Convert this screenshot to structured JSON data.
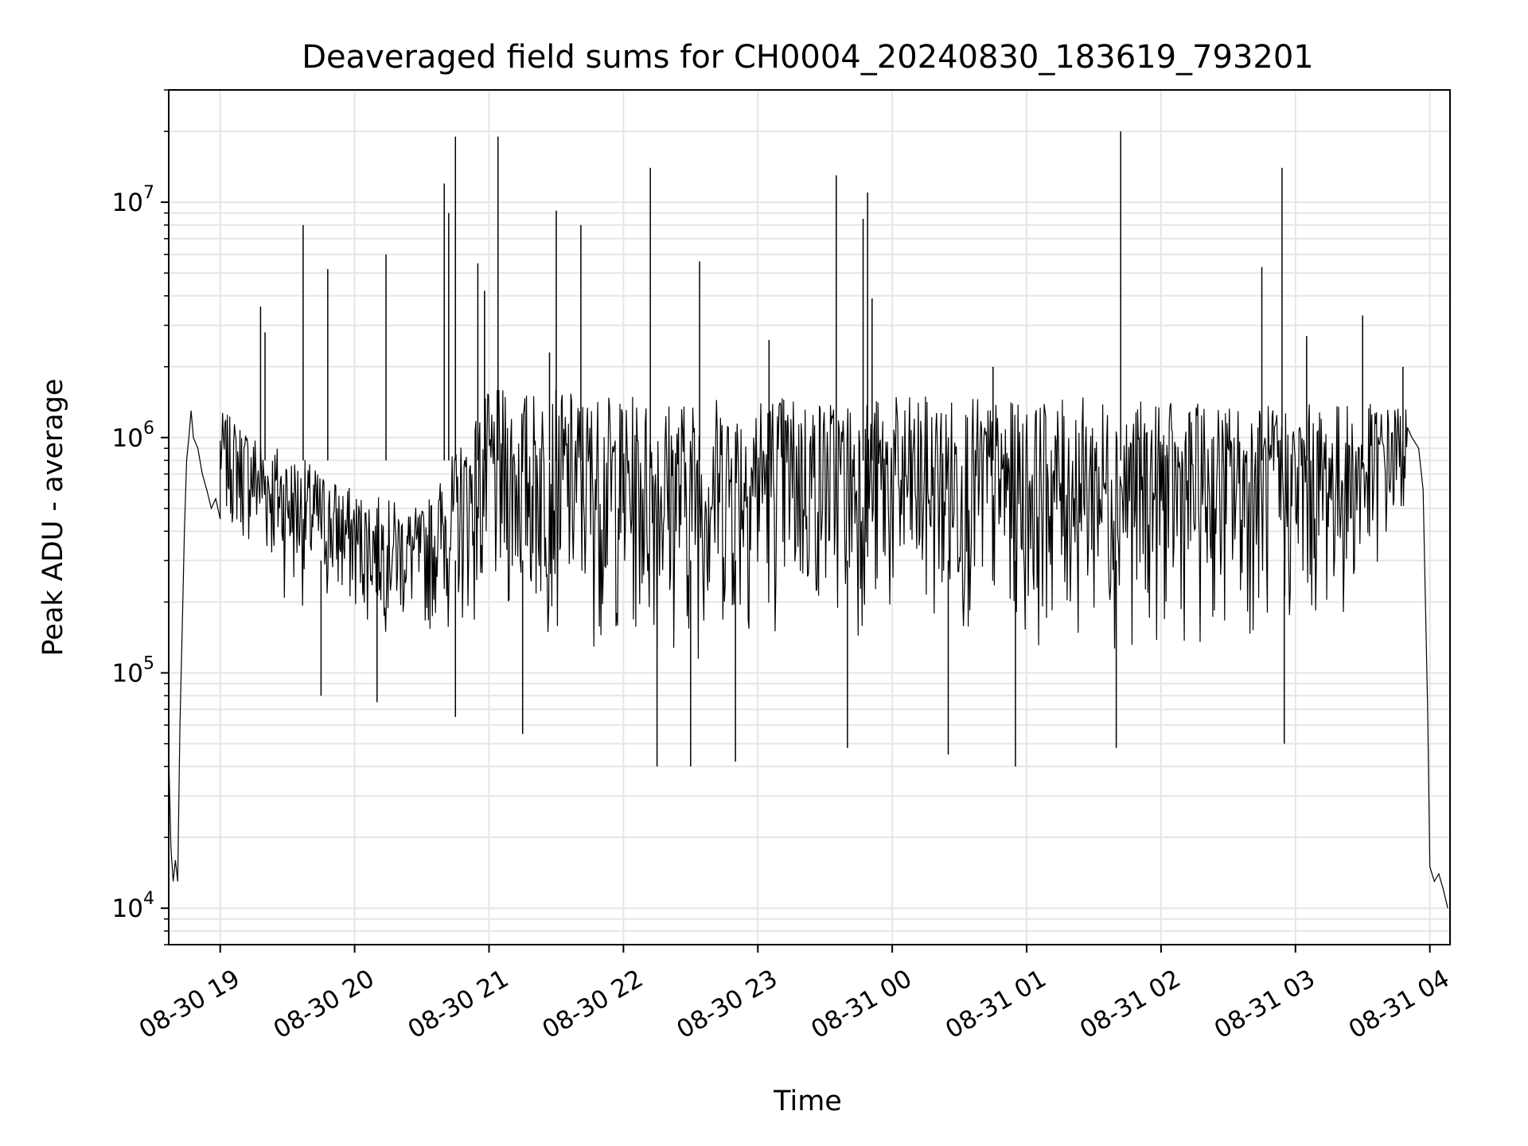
{
  "chart_data": {
    "type": "line",
    "title": "Deaveraged field sums for CH0004_20240830_183619_793201",
    "xlabel": "Time",
    "ylabel": "Peak ADU - average",
    "yscale": "log",
    "ylim": [
      7000,
      30000000
    ],
    "xlim": [
      "2024-08-30 18:37",
      "2024-08-31 04:09"
    ],
    "grid": true,
    "line_color": "#000000",
    "grid_color": "#e6e6e6",
    "x_ticks": [
      {
        "value": "2024-08-30 19:00",
        "label": "08-30 19"
      },
      {
        "value": "2024-08-30 20:00",
        "label": "08-30 20"
      },
      {
        "value": "2024-08-30 21:00",
        "label": "08-30 21"
      },
      {
        "value": "2024-08-30 22:00",
        "label": "08-30 22"
      },
      {
        "value": "2024-08-30 23:00",
        "label": "08-30 23"
      },
      {
        "value": "2024-08-31 00:00",
        "label": "08-31 00"
      },
      {
        "value": "2024-08-31 01:00",
        "label": "08-31 01"
      },
      {
        "value": "2024-08-31 02:00",
        "label": "08-31 02"
      },
      {
        "value": "2024-08-31 03:00",
        "label": "08-31 03"
      },
      {
        "value": "2024-08-31 04:00",
        "label": "08-31 04"
      }
    ],
    "y_ticks": [
      {
        "value": 10000,
        "mantissa": "10",
        "exp": "4"
      },
      {
        "value": 100000,
        "mantissa": "10",
        "exp": "5"
      },
      {
        "value": 1000000,
        "mantissa": "10",
        "exp": "6"
      },
      {
        "value": 10000000,
        "mantissa": "10",
        "exp": "7"
      }
    ],
    "series": [
      {
        "points": [
          [
            "2024-08-30 18:37",
            45000
          ],
          [
            "2024-08-30 18:38",
            18000
          ],
          [
            "2024-08-30 18:39",
            13000
          ],
          [
            "2024-08-30 18:40",
            16000
          ],
          [
            "2024-08-30 18:41",
            13000
          ],
          [
            "2024-08-30 18:42",
            60000
          ],
          [
            "2024-08-30 18:43",
            150000
          ],
          [
            "2024-08-30 18:44",
            400000
          ],
          [
            "2024-08-30 18:45",
            800000
          ],
          [
            "2024-08-30 18:46",
            1000000
          ],
          [
            "2024-08-30 18:47",
            1300000
          ],
          [
            "2024-08-30 18:48",
            1000000
          ],
          [
            "2024-08-30 18:50",
            900000
          ],
          [
            "2024-08-30 18:52",
            700000
          ],
          [
            "2024-08-30 18:54",
            600000
          ],
          [
            "2024-08-30 18:56",
            500000
          ],
          [
            "2024-08-30 18:58",
            550000
          ],
          [
            "2024-08-30 19:00",
            450000
          ],
          [
            "2024-08-30 19:05",
            400000
          ],
          [
            "2024-08-30 19:10",
            380000
          ],
          [
            "2024-08-30 19:15",
            300000
          ],
          [
            "2024-08-30 19:20",
            260000
          ],
          [
            "2024-08-30 19:25",
            230000
          ],
          [
            "2024-08-30 19:30",
            200000
          ],
          [
            "2024-08-30 19:40",
            180000
          ],
          [
            "2024-08-30 19:50",
            170000
          ],
          [
            "2024-08-30 20:00",
            160000
          ],
          [
            "2024-08-30 20:10",
            170000
          ],
          [
            "2024-08-30 20:20",
            160000
          ],
          [
            "2024-08-30 20:30",
            160000
          ],
          [
            "2024-08-30 20:40",
            180000
          ],
          [
            "2024-08-30 20:50",
            230000
          ],
          [
            "2024-08-30 21:00",
            250000
          ],
          [
            "2024-08-30 21:15",
            300000
          ],
          [
            "2024-08-30 21:30",
            320000
          ],
          [
            "2024-08-30 21:45",
            350000
          ],
          [
            "2024-08-30 22:00",
            380000
          ],
          [
            "2024-08-30 22:15",
            400000
          ],
          [
            "2024-08-30 22:30",
            400000
          ],
          [
            "2024-08-30 22:45",
            420000
          ],
          [
            "2024-08-30 23:00",
            500000
          ],
          [
            "2024-08-30 23:15",
            600000
          ],
          [
            "2024-08-30 23:30",
            700000
          ],
          [
            "2024-08-30 23:45",
            750000
          ],
          [
            "2024-08-31 00:00",
            650000
          ],
          [
            "2024-08-31 00:15",
            600000
          ],
          [
            "2024-08-31 00:30",
            550000
          ],
          [
            "2024-08-31 00:45",
            500000
          ],
          [
            "2024-08-31 01:00",
            450000
          ],
          [
            "2024-08-31 01:15",
            480000
          ],
          [
            "2024-08-31 01:30",
            500000
          ],
          [
            "2024-08-31 01:45",
            480000
          ],
          [
            "2024-08-31 02:00",
            460000
          ],
          [
            "2024-08-31 02:15",
            470000
          ],
          [
            "2024-08-31 02:30",
            480000
          ],
          [
            "2024-08-31 02:45",
            470000
          ],
          [
            "2024-08-31 03:00",
            480000
          ],
          [
            "2024-08-31 03:15",
            500000
          ],
          [
            "2024-08-31 03:30",
            550000
          ],
          [
            "2024-08-31 03:45",
            700000
          ],
          [
            "2024-08-31 03:52",
            1000000
          ],
          [
            "2024-08-31 03:55",
            900000
          ],
          [
            "2024-08-31 03:57",
            600000
          ],
          [
            "2024-08-31 03:59",
            70000
          ],
          [
            "2024-08-31 04:00",
            15000
          ],
          [
            "2024-08-31 04:02",
            13000
          ],
          [
            "2024-08-31 04:04",
            14000
          ],
          [
            "2024-08-31 04:06",
            12000
          ],
          [
            "2024-08-31 04:08",
            10000
          ]
        ]
      }
    ],
    "band_envelope": [
      [
        "2024-08-30 19:00",
        300000,
        1300000
      ],
      [
        "2024-08-30 19:30",
        120000,
        900000
      ],
      [
        "2024-08-30 20:00",
        100000,
        600000
      ],
      [
        "2024-08-30 20:30",
        90000,
        500000
      ],
      [
        "2024-08-30 21:00",
        65000,
        1600000
      ],
      [
        "2024-08-30 21:30",
        60000,
        1600000
      ],
      [
        "2024-08-30 22:00",
        50000,
        1500000
      ],
      [
        "2024-08-30 22:30",
        45000,
        1500000
      ],
      [
        "2024-08-30 23:00",
        60000,
        1600000
      ],
      [
        "2024-08-30 23:30",
        70000,
        1500000
      ],
      [
        "2024-08-31 00:00",
        55000,
        1500000
      ],
      [
        "2024-08-31 00:30",
        60000,
        1500000
      ],
      [
        "2024-08-31 01:00",
        60000,
        1400000
      ],
      [
        "2024-08-31 01:30",
        55000,
        1500000
      ],
      [
        "2024-08-31 02:00",
        55000,
        1400000
      ],
      [
        "2024-08-31 02:30",
        60000,
        1400000
      ],
      [
        "2024-08-31 03:00",
        60000,
        1400000
      ],
      [
        "2024-08-31 03:30",
        90000,
        1400000
      ],
      [
        "2024-08-31 03:50",
        300000,
        1400000
      ]
    ],
    "spikes": [
      [
        "2024-08-30 19:18",
        3600000
      ],
      [
        "2024-08-30 19:20",
        2800000
      ],
      [
        "2024-08-30 19:37",
        8000000
      ],
      [
        "2024-08-30 19:48",
        5200000
      ],
      [
        "2024-08-30 20:14",
        6000000
      ],
      [
        "2024-08-30 20:40",
        12000000
      ],
      [
        "2024-08-30 20:42",
        9000000
      ],
      [
        "2024-08-30 20:45",
        19000000
      ],
      [
        "2024-08-30 20:55",
        5500000
      ],
      [
        "2024-08-30 20:58",
        4200000
      ],
      [
        "2024-08-30 21:04",
        19000000
      ],
      [
        "2024-08-30 21:27",
        2300000
      ],
      [
        "2024-08-30 21:30",
        9200000
      ],
      [
        "2024-08-30 21:41",
        8000000
      ],
      [
        "2024-08-30 22:12",
        14000000
      ],
      [
        "2024-08-30 22:34",
        5600000
      ],
      [
        "2024-08-30 23:05",
        2600000
      ],
      [
        "2024-08-30 23:35",
        13000000
      ],
      [
        "2024-08-30 23:47",
        8500000
      ],
      [
        "2024-08-30 23:49",
        11000000
      ],
      [
        "2024-08-30 23:51",
        3900000
      ],
      [
        "2024-08-31 00:45",
        2000000
      ],
      [
        "2024-08-31 01:42",
        20000000
      ],
      [
        "2024-08-31 02:45",
        5300000
      ],
      [
        "2024-08-31 02:54",
        14000000
      ],
      [
        "2024-08-31 03:05",
        2700000
      ],
      [
        "2024-08-31 03:30",
        3300000
      ],
      [
        "2024-08-31 03:48",
        2000000
      ]
    ],
    "dips": [
      [
        "2024-08-30 19:45",
        80000
      ],
      [
        "2024-08-30 20:10",
        75000
      ],
      [
        "2024-08-30 20:45",
        65000
      ],
      [
        "2024-08-30 21:15",
        55000
      ],
      [
        "2024-08-30 22:15",
        40000
      ],
      [
        "2024-08-30 22:30",
        40000
      ],
      [
        "2024-08-30 22:50",
        42000
      ],
      [
        "2024-08-30 23:40",
        48000
      ],
      [
        "2024-08-31 00:25",
        45000
      ],
      [
        "2024-08-31 00:55",
        40000
      ],
      [
        "2024-08-31 01:40",
        48000
      ],
      [
        "2024-08-31 02:55",
        50000
      ]
    ]
  }
}
